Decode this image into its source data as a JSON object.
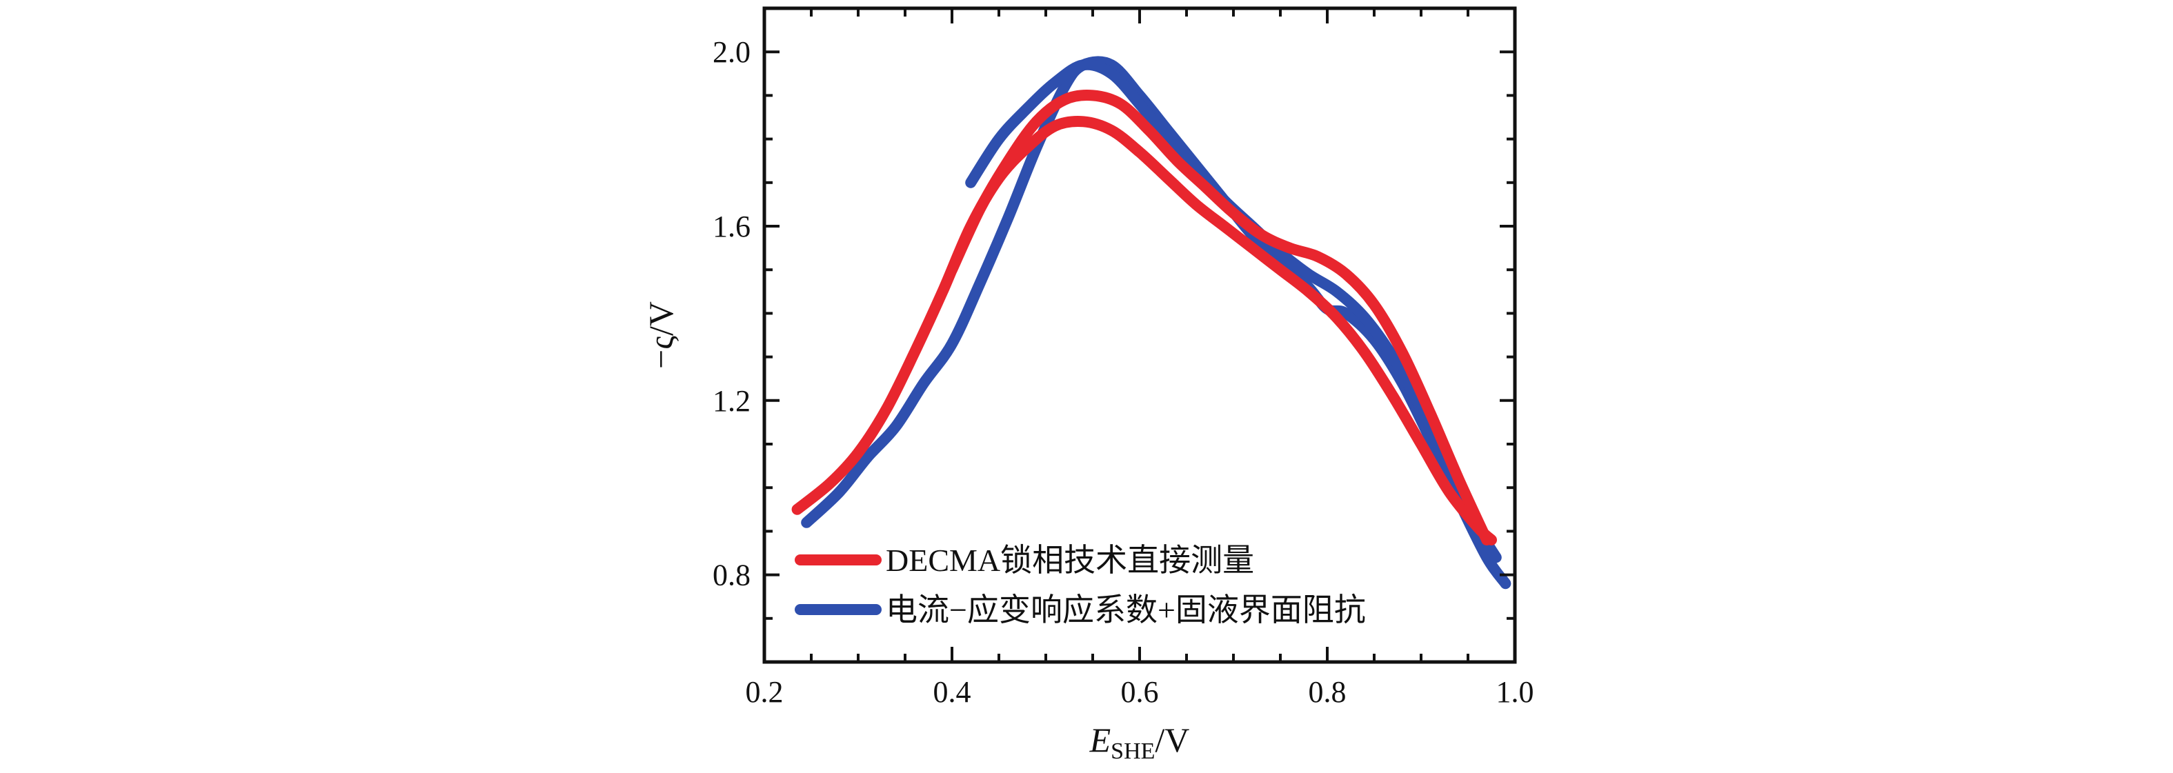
{
  "chart_data": {
    "type": "line",
    "title": "",
    "xlabel": {
      "main": "E",
      "sub": "SHE",
      "unit": "/V"
    },
    "ylabel": "−ς/V",
    "xlim": [
      0.2,
      1.0
    ],
    "ylim": [
      0.6,
      2.1
    ],
    "xticks": [
      0.2,
      0.4,
      0.6,
      0.8,
      1.0
    ],
    "xtick_labels": [
      "0.2",
      "0.4",
      "0.6",
      "0.8",
      "1.0"
    ],
    "yticks": [
      0.8,
      1.2,
      1.6,
      2.0
    ],
    "ytick_labels": [
      "0.8",
      "1.2",
      "1.6",
      "2.0"
    ],
    "grid": false,
    "legend_position": "bottom-left",
    "series": [
      {
        "name": "DECMA锁相技术直接测量",
        "color": "#e8262e",
        "sweeps": [
          {
            "x": [
              0.235,
              0.27,
              0.3,
              0.33,
              0.36,
              0.39,
              0.42,
              0.45,
              0.48,
              0.51,
              0.54,
              0.57,
              0.6,
              0.63,
              0.66,
              0.69,
              0.72,
              0.75,
              0.78,
              0.81,
              0.84,
              0.87,
              0.9,
              0.93,
              0.96,
              0.975
            ],
            "y": [
              0.95,
              1.01,
              1.08,
              1.18,
              1.31,
              1.45,
              1.6,
              1.71,
              1.78,
              1.83,
              1.84,
              1.82,
              1.77,
              1.71,
              1.65,
              1.6,
              1.55,
              1.5,
              1.45,
              1.39,
              1.31,
              1.21,
              1.1,
              0.99,
              0.91,
              0.88
            ]
          },
          {
            "x": [
              0.4,
              0.43,
              0.46,
              0.49,
              0.52,
              0.55,
              0.58,
              0.61,
              0.64,
              0.67,
              0.7,
              0.73,
              0.76,
              0.79,
              0.82,
              0.85,
              0.88,
              0.91,
              0.94,
              0.97
            ],
            "y": [
              1.5,
              1.64,
              1.75,
              1.84,
              1.89,
              1.9,
              1.88,
              1.82,
              1.75,
              1.69,
              1.63,
              1.58,
              1.55,
              1.53,
              1.49,
              1.42,
              1.31,
              1.17,
              1.02,
              0.88
            ]
          }
        ]
      },
      {
        "name": "电流−应变响应系数+固液界面阻抗",
        "color": "#2e4fae",
        "sweeps": [
          {
            "x": [
              0.245,
              0.28,
              0.31,
              0.34,
              0.37,
              0.4,
              0.43,
              0.46,
              0.49,
              0.52,
              0.54,
              0.57,
              0.6,
              0.63,
              0.66,
              0.69,
              0.72,
              0.75,
              0.78,
              0.8,
              0.82,
              0.85,
              0.88,
              0.91,
              0.94,
              0.97,
              0.99
            ],
            "y": [
              0.92,
              0.99,
              1.07,
              1.14,
              1.24,
              1.33,
              1.47,
              1.62,
              1.78,
              1.92,
              1.97,
              1.97,
              1.9,
              1.82,
              1.74,
              1.66,
              1.58,
              1.52,
              1.46,
              1.41,
              1.4,
              1.34,
              1.24,
              1.11,
              0.97,
              0.84,
              0.78
            ]
          },
          {
            "x": [
              0.42,
              0.45,
              0.48,
              0.51,
              0.54,
              0.57,
              0.6,
              0.63,
              0.66,
              0.69,
              0.72,
              0.75,
              0.78,
              0.81,
              0.84,
              0.87,
              0.9,
              0.93,
              0.96,
              0.98
            ],
            "y": [
              1.7,
              1.8,
              1.87,
              1.93,
              1.97,
              1.95,
              1.88,
              1.8,
              1.73,
              1.66,
              1.6,
              1.54,
              1.49,
              1.45,
              1.39,
              1.3,
              1.18,
              1.04,
              0.91,
              0.84
            ]
          }
        ]
      }
    ]
  }
}
